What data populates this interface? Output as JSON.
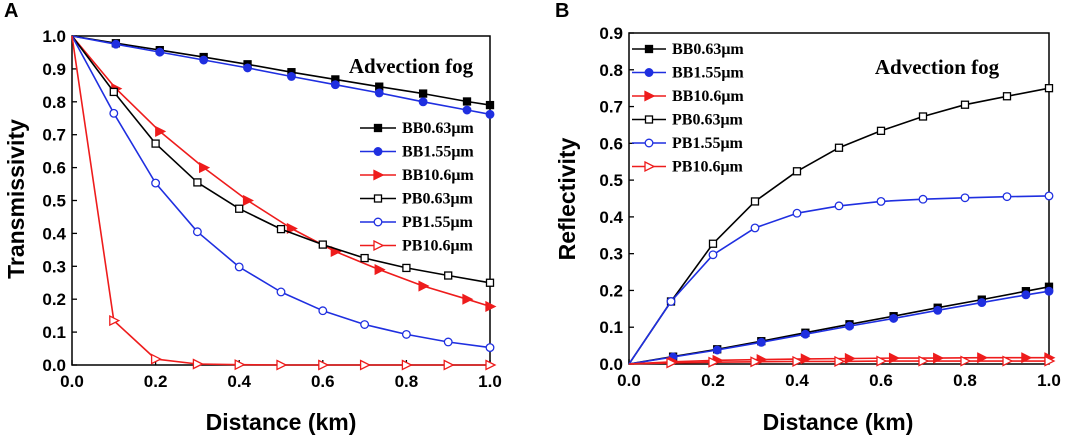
{
  "colors": {
    "black": "#000000",
    "blue": "#1f2fe0",
    "red": "#ee1c1c"
  },
  "chart_data": [
    {
      "type": "line",
      "panel_letter": "A",
      "title": "",
      "annotation": "Advection fog",
      "xlabel": "Distance (km)",
      "ylabel": "Transmissivity",
      "xlim": [
        0.0,
        1.0
      ],
      "ylim": [
        0.0,
        1.0
      ],
      "xticks": [
        "0.0",
        "0.2",
        "0.4",
        "0.6",
        "0.8",
        "1.0"
      ],
      "yticks": [
        "0.0",
        "0.1",
        "0.2",
        "0.3",
        "0.4",
        "0.5",
        "0.6",
        "0.7",
        "0.8",
        "0.9",
        "1.0"
      ],
      "legend_position": "center-right",
      "series": [
        {
          "name": "BB0.63μm",
          "color": "black",
          "marker": "square",
          "filled": true,
          "x": [
            0,
            0.105,
            0.21,
            0.315,
            0.42,
            0.525,
            0.63,
            0.735,
            0.84,
            0.945,
            1.0
          ],
          "y": [
            1.0,
            0.978,
            0.957,
            0.936,
            0.914,
            0.89,
            0.868,
            0.846,
            0.825,
            0.801,
            0.79
          ]
        },
        {
          "name": "BB1.55μm",
          "color": "blue",
          "marker": "circle",
          "filled": true,
          "x": [
            0,
            0.105,
            0.21,
            0.315,
            0.42,
            0.525,
            0.63,
            0.735,
            0.84,
            0.945,
            1.0
          ],
          "y": [
            1.0,
            0.975,
            0.951,
            0.927,
            0.903,
            0.877,
            0.852,
            0.827,
            0.8,
            0.775,
            0.762
          ]
        },
        {
          "name": "BB10.6μm",
          "color": "red",
          "marker": "triangle-right",
          "filled": true,
          "x": [
            0,
            0.105,
            0.21,
            0.315,
            0.42,
            0.525,
            0.63,
            0.735,
            0.84,
            0.945,
            1.0
          ],
          "y": [
            1.0,
            0.84,
            0.71,
            0.6,
            0.5,
            0.415,
            0.345,
            0.29,
            0.24,
            0.2,
            0.178
          ]
        },
        {
          "name": "PB0.63μm",
          "color": "black",
          "marker": "square",
          "filled": false,
          "x": [
            0,
            0.1,
            0.2,
            0.3,
            0.4,
            0.5,
            0.6,
            0.7,
            0.8,
            0.9,
            1.0
          ],
          "y": [
            1.0,
            0.83,
            0.673,
            0.555,
            0.475,
            0.413,
            0.366,
            0.325,
            0.295,
            0.272,
            0.25
          ]
        },
        {
          "name": "PB1.55μm",
          "color": "blue",
          "marker": "circle",
          "filled": false,
          "x": [
            0,
            0.1,
            0.2,
            0.3,
            0.4,
            0.5,
            0.6,
            0.7,
            0.8,
            0.9,
            1.0
          ],
          "y": [
            1.0,
            0.765,
            0.553,
            0.405,
            0.298,
            0.222,
            0.165,
            0.123,
            0.093,
            0.07,
            0.053
          ]
        },
        {
          "name": "PB10.6μm",
          "color": "red",
          "marker": "triangle-right",
          "filled": false,
          "x": [
            0,
            0.1,
            0.2,
            0.3,
            0.4,
            0.5,
            0.6,
            0.7,
            0.8,
            0.9,
            1.0
          ],
          "y": [
            1.0,
            0.135,
            0.018,
            0.003,
            0.001,
            0.0,
            0.0,
            0.0,
            0.0,
            0.0,
            0.0
          ]
        }
      ]
    },
    {
      "type": "line",
      "panel_letter": "B",
      "title": "",
      "annotation": "Advection fog",
      "xlabel": "Distance (km)",
      "ylabel": "Reflectivity",
      "xlim": [
        0.0,
        1.0
      ],
      "ylim": [
        0.0,
        0.9
      ],
      "xticks": [
        "0.0",
        "0.2",
        "0.4",
        "0.6",
        "0.8",
        "1.0"
      ],
      "yticks": [
        "0.0",
        "0.1",
        "0.2",
        "0.3",
        "0.4",
        "0.5",
        "0.6",
        "0.7",
        "0.8",
        "0.9"
      ],
      "legend_position": "top-left",
      "series": [
        {
          "name": "BB0.63μm",
          "color": "black",
          "marker": "square",
          "filled": true,
          "x": [
            0,
            0.105,
            0.21,
            0.315,
            0.42,
            0.525,
            0.63,
            0.735,
            0.84,
            0.945,
            1.0
          ],
          "y": [
            0.0,
            0.02,
            0.04,
            0.062,
            0.085,
            0.108,
            0.13,
            0.153,
            0.175,
            0.198,
            0.21
          ]
        },
        {
          "name": "BB1.55μm",
          "color": "blue",
          "marker": "circle",
          "filled": true,
          "x": [
            0,
            0.105,
            0.21,
            0.315,
            0.42,
            0.525,
            0.63,
            0.735,
            0.84,
            0.945,
            1.0
          ],
          "y": [
            0.0,
            0.019,
            0.038,
            0.059,
            0.081,
            0.103,
            0.124,
            0.146,
            0.167,
            0.188,
            0.198
          ]
        },
        {
          "name": "BB10.6μm",
          "color": "red",
          "marker": "triangle-right",
          "filled": true,
          "x": [
            0,
            0.105,
            0.21,
            0.315,
            0.42,
            0.525,
            0.63,
            0.735,
            0.84,
            0.945,
            1.0
          ],
          "y": [
            0.0,
            0.006,
            0.01,
            0.012,
            0.014,
            0.015,
            0.016,
            0.016,
            0.017,
            0.017,
            0.017
          ]
        },
        {
          "name": "PB0.63μm",
          "color": "black",
          "marker": "square",
          "filled": false,
          "x": [
            0,
            0.1,
            0.2,
            0.3,
            0.4,
            0.5,
            0.6,
            0.7,
            0.8,
            0.9,
            1.0
          ],
          "y": [
            0.0,
            0.17,
            0.327,
            0.442,
            0.524,
            0.588,
            0.634,
            0.673,
            0.705,
            0.728,
            0.75
          ]
        },
        {
          "name": "PB1.55μm",
          "color": "blue",
          "marker": "circle",
          "filled": false,
          "x": [
            0,
            0.1,
            0.2,
            0.3,
            0.4,
            0.5,
            0.6,
            0.7,
            0.8,
            0.9,
            1.0
          ],
          "y": [
            0.0,
            0.17,
            0.297,
            0.37,
            0.41,
            0.43,
            0.442,
            0.448,
            0.452,
            0.455,
            0.457
          ]
        },
        {
          "name": "PB10.6μm",
          "color": "red",
          "marker": "triangle-right",
          "filled": false,
          "x": [
            0,
            0.1,
            0.2,
            0.3,
            0.4,
            0.5,
            0.6,
            0.7,
            0.8,
            0.9,
            1.0
          ],
          "y": [
            0.0,
            0.003,
            0.005,
            0.006,
            0.007,
            0.007,
            0.008,
            0.008,
            0.008,
            0.008,
            0.008
          ]
        }
      ]
    }
  ]
}
